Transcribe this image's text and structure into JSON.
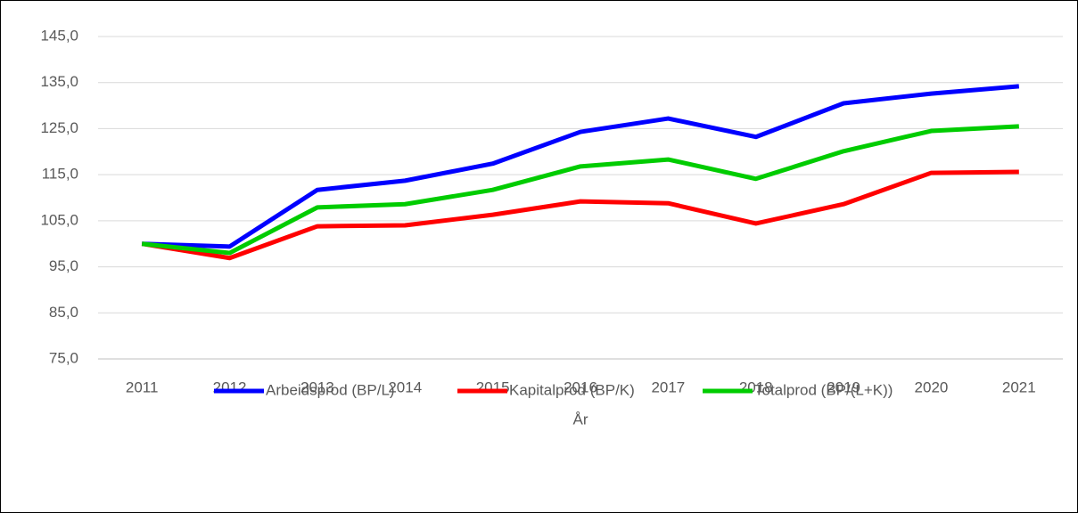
{
  "chart_data": {
    "type": "line",
    "x_label": "År",
    "categories": [
      "2011",
      "2012",
      "2013",
      "2014",
      "2015",
      "2016",
      "2017",
      "2018",
      "2019",
      "2020",
      "2021"
    ],
    "series": [
      {
        "name": "Arbeidsprod (BP/L)",
        "color": "#0000ff",
        "values": [
          100,
          99.4,
          111.7,
          113.7,
          117.4,
          124.3,
          127.2,
          123.2,
          130.5,
          132.6,
          134.2
        ]
      },
      {
        "name": "Kapitalprod (BP/K)",
        "color": "#ff0000",
        "values": [
          100,
          96.9,
          103.8,
          104.0,
          106.3,
          109.2,
          108.8,
          104.4,
          108.6,
          115.4,
          115.6
        ]
      },
      {
        "name": "Totalprod (BP/(L+K))",
        "color": "#00cc00",
        "values": [
          100,
          98.0,
          107.9,
          108.6,
          111.7,
          116.8,
          118.3,
          114.1,
          120.1,
          124.5,
          125.5
        ]
      }
    ],
    "ylim": [
      75,
      145
    ],
    "yticks": [
      {
        "value": 75,
        "label": "75,0"
      },
      {
        "value": 85,
        "label": "85,0"
      },
      {
        "value": 95,
        "label": "95,0"
      },
      {
        "value": 105,
        "label": "105,0"
      },
      {
        "value": 115,
        "label": "115,0"
      },
      {
        "value": 125,
        "label": "125,0"
      },
      {
        "value": 135,
        "label": "135,0"
      },
      {
        "value": 145,
        "label": "145,0"
      }
    ],
    "grid": true,
    "legend": "bottom"
  }
}
